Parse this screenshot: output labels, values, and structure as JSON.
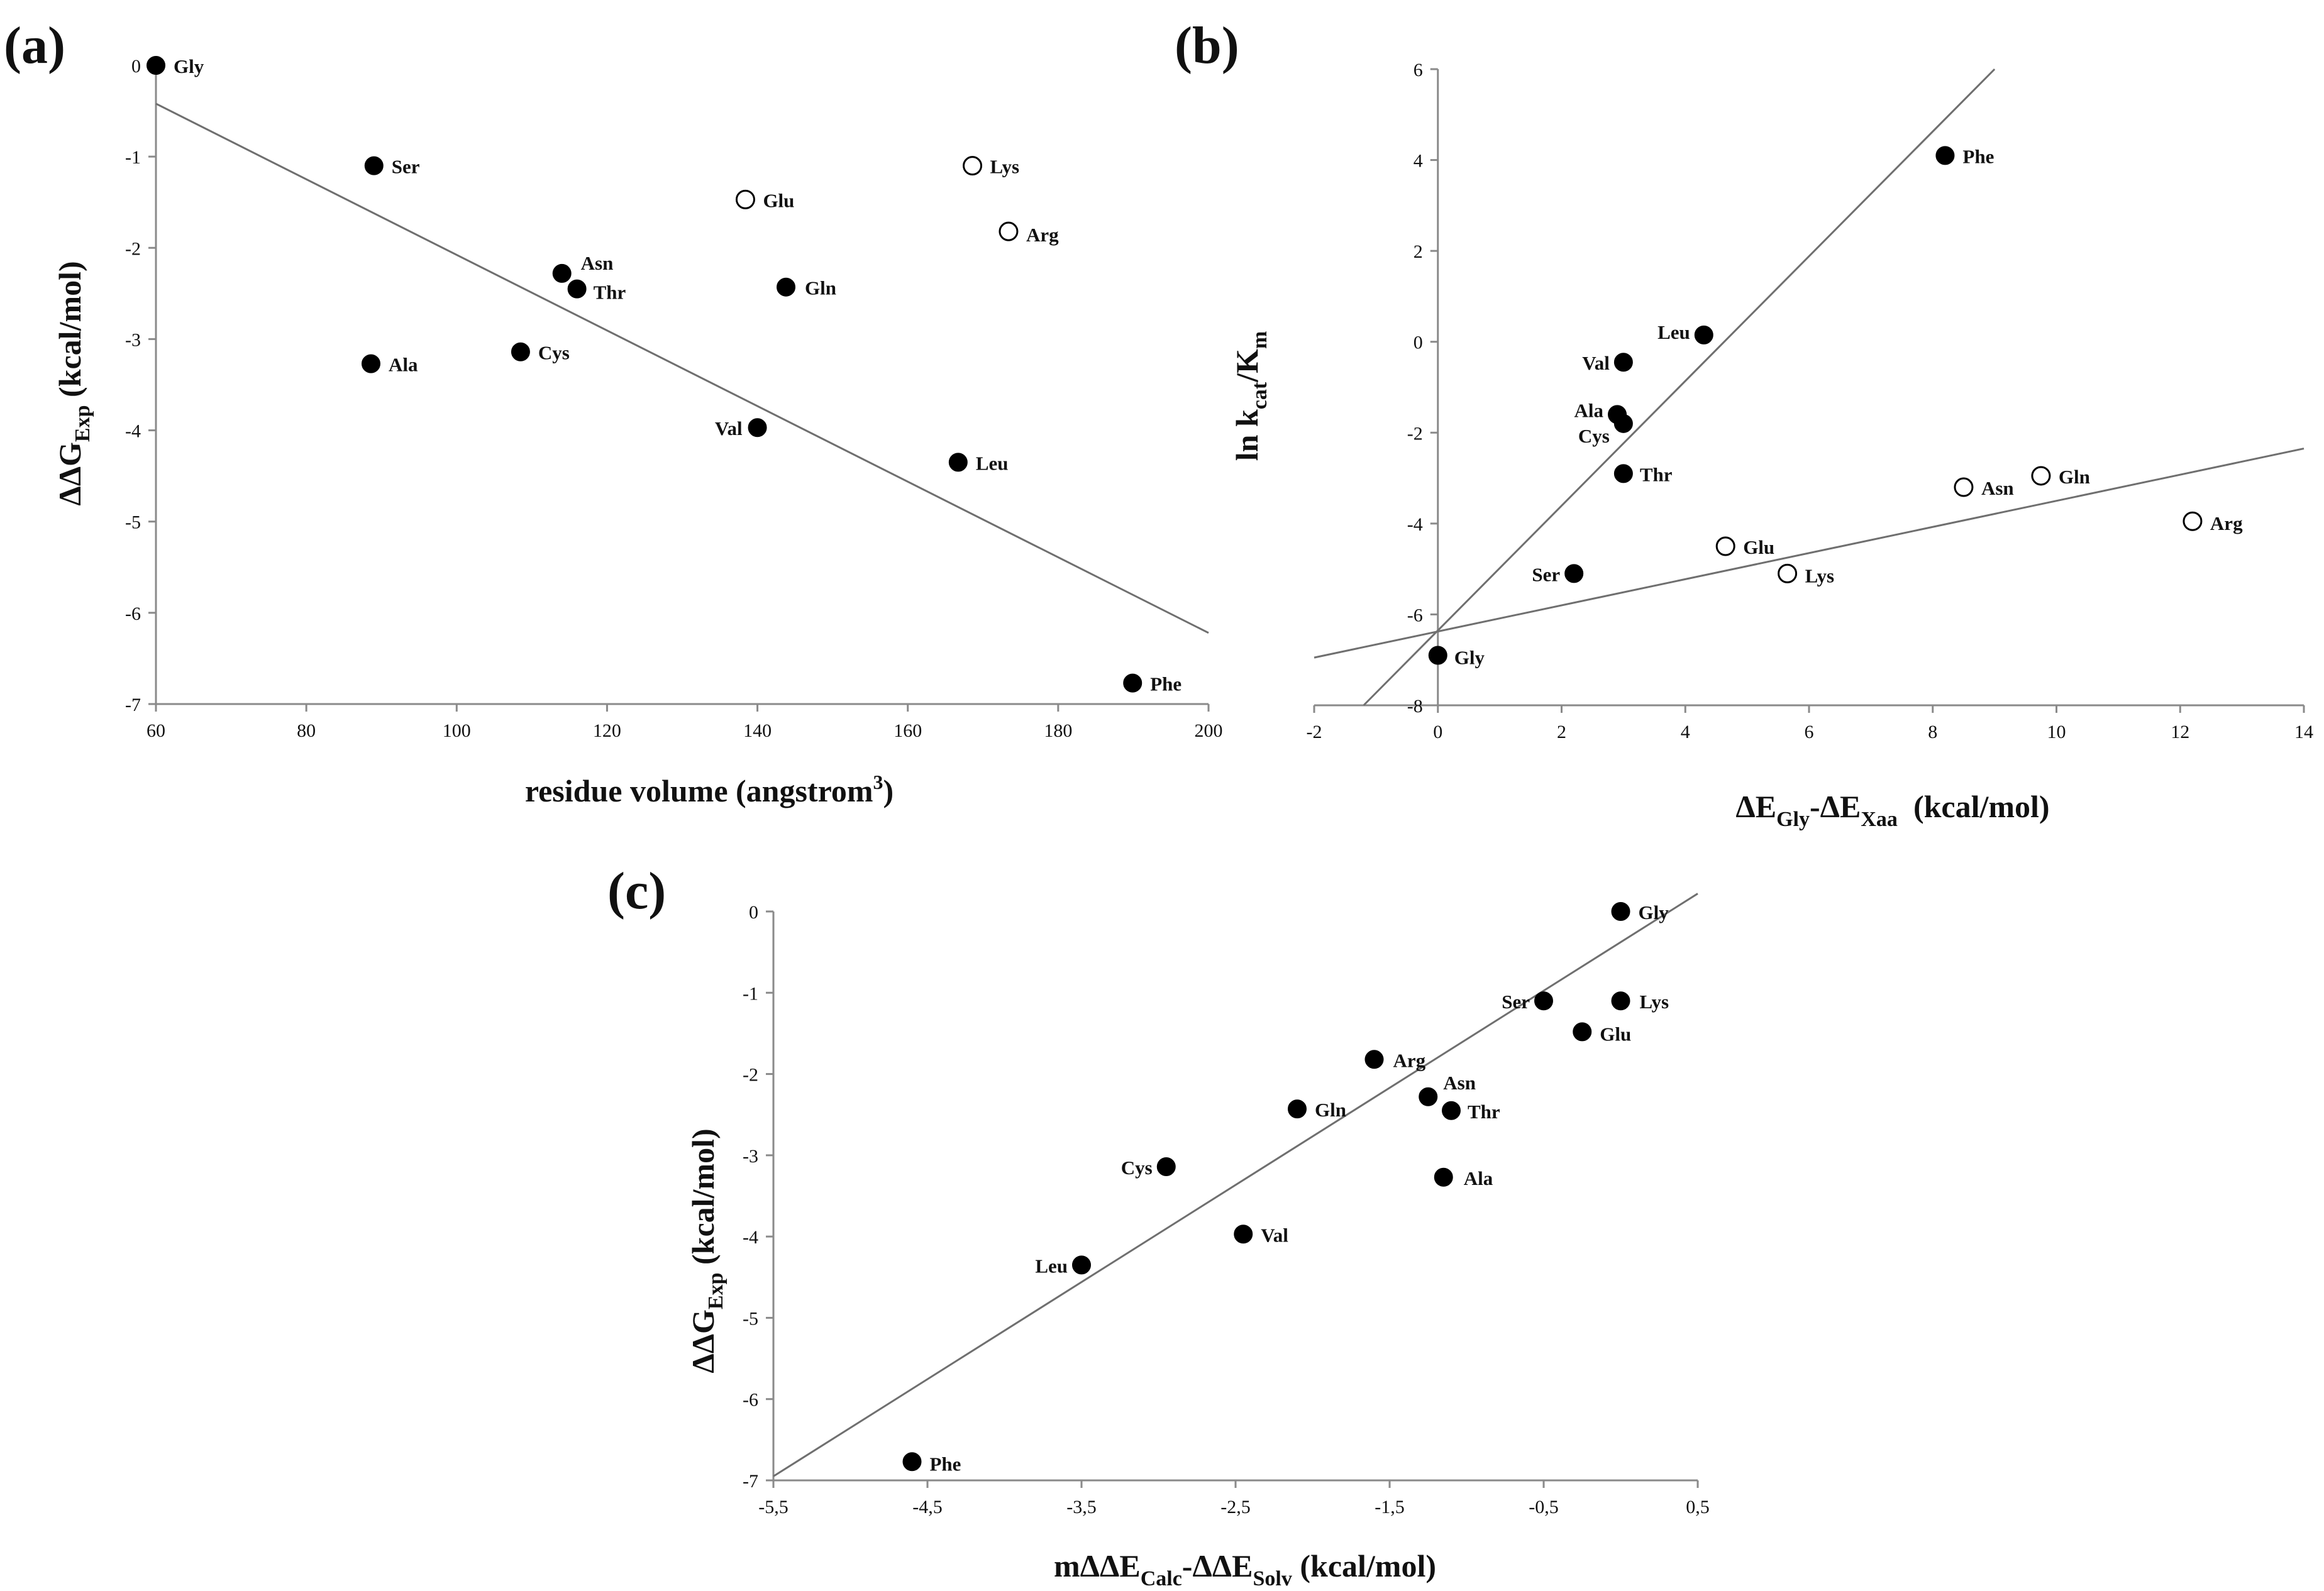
{
  "chart_data": [
    {
      "type": "scatter",
      "panel": "(a)",
      "xlabel": "residue volume (angstrom",
      "xlabel_sup": "3",
      "xlabel_end": ")",
      "ylabel_main": "ΔΔG",
      "ylabel_sub": "Exp",
      "ylabel_end": " (kcal/mol)",
      "xlim": [
        60,
        200
      ],
      "ylim": [
        -7,
        0
      ],
      "x_ticks": [
        60,
        80,
        100,
        120,
        140,
        160,
        180,
        200
      ],
      "y_ticks": [
        0,
        -1,
        -2,
        -3,
        -4,
        -5,
        -6,
        -7
      ],
      "trend": {
        "x": [
          60,
          200
        ],
        "y": [
          -0.42,
          -6.22
        ]
      },
      "points": [
        {
          "label": "Gly",
          "x": 60,
          "y": 0.0,
          "filled": true
        },
        {
          "label": "Ser",
          "x": 89,
          "y": -1.1,
          "filled": true
        },
        {
          "label": "Asn",
          "x": 114,
          "y": -2.28,
          "filled": true
        },
        {
          "label": "Thr",
          "x": 116,
          "y": -2.45,
          "filled": true
        },
        {
          "label": "Ala",
          "x": 88.6,
          "y": -3.27,
          "filled": true
        },
        {
          "label": "Cys",
          "x": 108.5,
          "y": -3.14,
          "filled": true
        },
        {
          "label": "Glu",
          "x": 138.4,
          "y": -1.47,
          "filled": false
        },
        {
          "label": "Gln",
          "x": 143.8,
          "y": -2.43,
          "filled": true
        },
        {
          "label": "Val",
          "x": 140,
          "y": -3.97,
          "filled": true
        },
        {
          "label": "Lys",
          "x": 168.6,
          "y": -1.1,
          "filled": false
        },
        {
          "label": "Arg",
          "x": 173.4,
          "y": -1.82,
          "filled": false
        },
        {
          "label": "Leu",
          "x": 166.7,
          "y": -4.35,
          "filled": true
        },
        {
          "label": "Phe",
          "x": 189.9,
          "y": -6.77,
          "filled": true
        }
      ]
    },
    {
      "type": "scatter",
      "panel": "(b)",
      "xlabel_parts": [
        "ΔE",
        "Gly",
        "-ΔE",
        "Xaa",
        "  (kcal/mol)"
      ],
      "ylabel_parts": [
        "ln k",
        "cat",
        "/K",
        "m"
      ],
      "xlim": [
        -2,
        14
      ],
      "ylim": [
        -8,
        6
      ],
      "x_ticks": [
        -2,
        0,
        2,
        4,
        6,
        8,
        10,
        12,
        14
      ],
      "y_ticks": [
        6,
        4,
        2,
        0,
        -2,
        -4,
        -6,
        -8
      ],
      "trends": [
        {
          "x": [
            -1.2,
            9.0
          ],
          "y": [
            -8.0,
            6.0
          ]
        },
        {
          "x": [
            -2,
            14
          ],
          "y": [
            -6.95,
            -2.35
          ]
        }
      ],
      "points": [
        {
          "label": "Phe",
          "x": 8.2,
          "y": 4.1,
          "filled": true
        },
        {
          "label": "Leu",
          "x": 4.3,
          "y": 0.15,
          "filled": true
        },
        {
          "label": "Val",
          "x": 3.0,
          "y": -0.45,
          "filled": true
        },
        {
          "label": "Ala",
          "x": 2.9,
          "y": -1.6,
          "filled": true
        },
        {
          "label": "Cys",
          "x": 3.0,
          "y": -1.8,
          "filled": true
        },
        {
          "label": "Thr",
          "x": 3.0,
          "y": -2.9,
          "filled": true
        },
        {
          "label": "Ser",
          "x": 2.2,
          "y": -5.1,
          "filled": true
        },
        {
          "label": "Gly",
          "x": 0.0,
          "y": -6.9,
          "filled": true
        },
        {
          "label": "Asn",
          "x": 8.5,
          "y": -3.2,
          "filled": false
        },
        {
          "label": "Gln",
          "x": 9.75,
          "y": -2.95,
          "filled": false
        },
        {
          "label": "Arg",
          "x": 12.2,
          "y": -3.95,
          "filled": false
        },
        {
          "label": "Glu",
          "x": 4.65,
          "y": -4.5,
          "filled": false
        },
        {
          "label": "Lys",
          "x": 5.65,
          "y": -5.1,
          "filled": false
        }
      ]
    },
    {
      "type": "scatter",
      "panel": "(c)",
      "xlabel_parts": [
        "mΔΔE",
        "Calc",
        "-ΔΔE",
        "Solv",
        " (kcal/mol)"
      ],
      "ylabel_main": "ΔΔG",
      "ylabel_sub": "Exp",
      "ylabel_end": " (kcal/mol)",
      "xlim": [
        -5.5,
        0.5
      ],
      "ylim": [
        -7,
        0
      ],
      "x_ticks": [
        -5.5,
        -4.5,
        -3.5,
        -2.5,
        -1.5,
        -0.5,
        0.5
      ],
      "x_tick_labels": [
        "-5,5",
        "-4,5",
        "-3,5",
        "-2,5",
        "-1,5",
        "-0,5",
        "0,5"
      ],
      "y_ticks": [
        0,
        -1,
        -2,
        -3,
        -4,
        -5,
        -6,
        -7
      ],
      "trend": {
        "x": [
          -5.5,
          0.5
        ],
        "y": [
          -6.95,
          0.22
        ]
      },
      "points": [
        {
          "label": "Gly",
          "x": 0.0,
          "y": 0.0,
          "filled": true
        },
        {
          "label": "Ser",
          "x": -0.5,
          "y": -1.1,
          "filled": true
        },
        {
          "label": "Lys",
          "x": 0.0,
          "y": -1.1,
          "filled": true
        },
        {
          "label": "Glu",
          "x": -0.25,
          "y": -1.48,
          "filled": true
        },
        {
          "label": "Arg",
          "x": -1.6,
          "y": -1.82,
          "filled": true
        },
        {
          "label": "Asn",
          "x": -1.25,
          "y": -2.28,
          "filled": true
        },
        {
          "label": "Thr",
          "x": -1.1,
          "y": -2.45,
          "filled": true
        },
        {
          "label": "Gln",
          "x": -2.1,
          "y": -2.43,
          "filled": true
        },
        {
          "label": "Cys",
          "x": -2.95,
          "y": -3.14,
          "filled": true
        },
        {
          "label": "Ala",
          "x": -1.15,
          "y": -3.27,
          "filled": true
        },
        {
          "label": "Val",
          "x": -2.45,
          "y": -3.97,
          "filled": true
        },
        {
          "label": "Leu",
          "x": -3.5,
          "y": -4.35,
          "filled": true
        },
        {
          "label": "Phe",
          "x": -4.6,
          "y": -6.77,
          "filled": true
        }
      ]
    }
  ]
}
